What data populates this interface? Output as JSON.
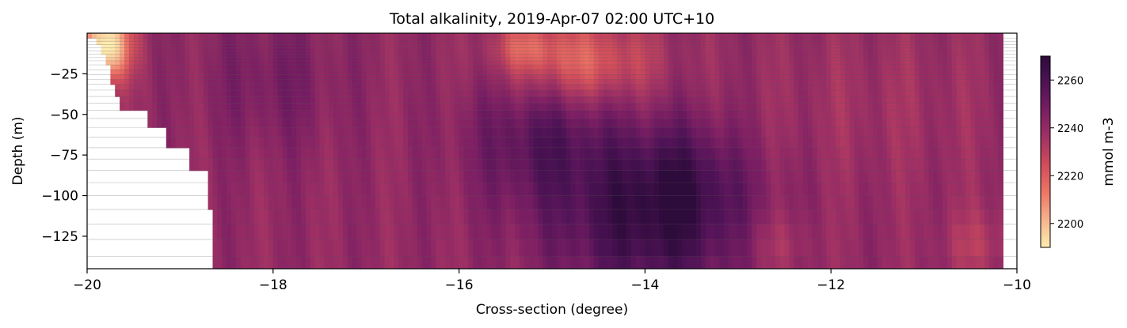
{
  "chart_data": {
    "type": "heatmap",
    "title": "Total alkalinity, 2019-Apr-07 02:00 UTC+10",
    "xlabel": "Cross-section (degree)",
    "ylabel": "Depth (m)",
    "xlim": [
      -20,
      -10
    ],
    "ylim": [
      -145,
      0
    ],
    "x_ticks": [
      -20,
      -18,
      -16,
      -14,
      -12,
      -10
    ],
    "x_tick_labels": [
      "−20",
      "−18",
      "−16",
      "−14",
      "−12",
      "−10"
    ],
    "y_ticks": [
      -25,
      -50,
      -75,
      -100,
      -125
    ],
    "y_tick_labels": [
      "−25",
      "−50",
      "−75",
      "−100",
      "−125"
    ],
    "colorbar": {
      "label": "mmol m-3",
      "range": [
        2190,
        2270
      ],
      "ticks": [
        2200,
        2220,
        2240,
        2260
      ],
      "tick_labels": [
        "2200",
        "2220",
        "2240",
        "2260"
      ],
      "colormap": "magma_r (light yellow = low, dark purple = high)",
      "colors": [
        "#fdedb0",
        "#f6b48e",
        "#ee7666",
        "#d14d5b",
        "#a23264",
        "#7a1e63",
        "#4f1356",
        "#2d0b3b"
      ]
    },
    "layer_depths": [
      -2,
      -4,
      -6,
      -8,
      -10,
      -12,
      -14,
      -16,
      -18,
      -21,
      -24,
      -27,
      -30,
      -33,
      -37,
      -41,
      -45,
      -50,
      -55,
      -61,
      -67,
      -74,
      -81,
      -88,
      -96,
      -104,
      -113,
      -122,
      -132,
      -143
    ],
    "bathymetry": [
      [
        -19.95,
        -3
      ],
      [
        -19.9,
        -6
      ],
      [
        -19.85,
        -12
      ],
      [
        -19.8,
        -20
      ],
      [
        -19.75,
        -30
      ],
      [
        -19.7,
        -37
      ],
      [
        -19.65,
        -45
      ],
      [
        -19.4,
        -45
      ],
      [
        -19.35,
        -55
      ],
      [
        -19.2,
        -55
      ],
      [
        -19.15,
        -67
      ],
      [
        -18.95,
        -67
      ],
      [
        -18.9,
        -81
      ],
      [
        -18.75,
        -81
      ],
      [
        -18.7,
        -96
      ],
      [
        -18.68,
        -104
      ],
      [
        -18.66,
        -113
      ],
      [
        -18.65,
        -145
      ]
    ],
    "right_edge": -10.15,
    "field": {
      "background": 2240,
      "features": [
        {
          "x": -19.8,
          "depth": -8,
          "sx": 0.18,
          "sy": 15,
          "amp": -55
        },
        {
          "x": -14.7,
          "depth": -18,
          "sx": 0.55,
          "sy": 18,
          "amp": -24
        },
        {
          "x": -15.3,
          "depth": -8,
          "sx": 0.25,
          "sy": 10,
          "amp": -14
        },
        {
          "x": -18.0,
          "depth": -30,
          "sx": 0.5,
          "sy": 30,
          "amp": 8
        },
        {
          "x": -15.1,
          "depth": -65,
          "sx": 0.55,
          "sy": 30,
          "amp": 16
        },
        {
          "x": -13.9,
          "depth": -115,
          "sx": 0.75,
          "sy": 35,
          "amp": 26
        },
        {
          "x": -13.6,
          "depth": -85,
          "sx": 0.4,
          "sy": 25,
          "amp": 10
        },
        {
          "x": -12.6,
          "depth": -130,
          "sx": 0.3,
          "sy": 15,
          "amp": -8
        },
        {
          "x": -10.4,
          "depth": -130,
          "sx": 0.3,
          "sy": 15,
          "amp": -8
        },
        {
          "x": -11.5,
          "depth": -40,
          "sx": 1.0,
          "sy": 40,
          "amp": -4
        }
      ]
    }
  }
}
